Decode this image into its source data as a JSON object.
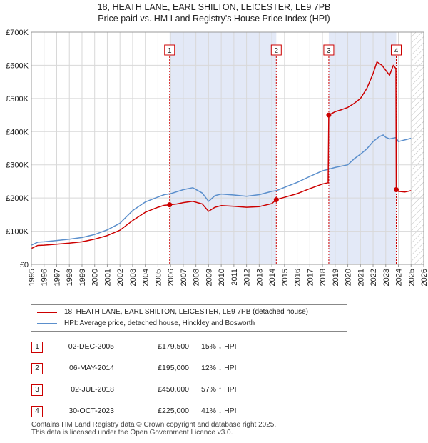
{
  "title_line1": "18, HEATH LANE, EARL SHILTON, LEICESTER, LE9 7PB",
  "title_line2": "Price paid vs. HM Land Registry's House Price Index (HPI)",
  "colors": {
    "property": "#cc0000",
    "hpi": "#5b8fcc",
    "shade": "#e3e9f7",
    "grid": "#d8d8d8",
    "future_hatch": "#bbbbbb"
  },
  "legend": {
    "property_label": "18, HEATH LANE, EARL SHILTON, LEICESTER, LE9 7PB (detached house)",
    "hpi_label": "HPI: Average price, detached house, Hinckley and Bosworth"
  },
  "sales": [
    {
      "num": "1",
      "date": "02-DEC-2005",
      "price": "£179,500",
      "hpi_change": "15% ↓ HPI"
    },
    {
      "num": "2",
      "date": "06-MAY-2014",
      "price": "£195,000",
      "hpi_change": "12% ↓ HPI"
    },
    {
      "num": "3",
      "date": "02-JUL-2018",
      "price": "£450,000",
      "hpi_change": "57% ↑ HPI"
    },
    {
      "num": "4",
      "date": "30-OCT-2023",
      "price": "£225,000",
      "hpi_change": "41% ↓ HPI"
    }
  ],
  "footer_line1": "Contains HM Land Registry data © Crown copyright and database right 2025.",
  "footer_line2": "This data is licensed under the Open Government Licence v3.0.",
  "chart_data": {
    "type": "line",
    "xlim": [
      1995,
      2026
    ],
    "ylim": [
      0,
      700000
    ],
    "x_ticks": [
      "1995",
      "1996",
      "1997",
      "1998",
      "1999",
      "2000",
      "2001",
      "2002",
      "2003",
      "2004",
      "2005",
      "2006",
      "2007",
      "2008",
      "2009",
      "2010",
      "2011",
      "2012",
      "2013",
      "2014",
      "2015",
      "2016",
      "2017",
      "2018",
      "2019",
      "2020",
      "2021",
      "2022",
      "2023",
      "2024",
      "2025",
      "2026"
    ],
    "y_ticks": [
      {
        "value": 0,
        "label": "£0"
      },
      {
        "value": 100000,
        "label": "£100K"
      },
      {
        "value": 200000,
        "label": "£200K"
      },
      {
        "value": 300000,
        "label": "£300K"
      },
      {
        "value": 400000,
        "label": "£400K"
      },
      {
        "value": 500000,
        "label": "£500K"
      },
      {
        "value": 600000,
        "label": "£600K"
      },
      {
        "value": 700000,
        "label": "£700K"
      }
    ],
    "grid": true,
    "future_from": 2025.0,
    "sale_markers": [
      {
        "label": "1",
        "x": 2005.92,
        "y": 179500
      },
      {
        "label": "2",
        "x": 2014.35,
        "y": 195000
      },
      {
        "label": "3",
        "x": 2018.5,
        "y": 450000
      },
      {
        "label": "4",
        "x": 2023.83,
        "y": 225000
      }
    ],
    "shaded_periods": [
      [
        2005.92,
        2014.35
      ],
      [
        2018.5,
        2023.83
      ]
    ],
    "series": [
      {
        "name": "18, HEATH LANE, EARL SHILTON, LEICESTER, LE9 7PB (detached house)",
        "x": [
          1995.0,
          1995.5,
          1996.0,
          1997.0,
          1998.0,
          1999.0,
          2000.0,
          2001.0,
          2002.0,
          2003.0,
          2004.0,
          2005.0,
          2005.5,
          2005.92,
          2006.5,
          2007.0,
          2007.75,
          2008.5,
          2009.0,
          2009.5,
          2010.0,
          2011.0,
          2012.0,
          2013.0,
          2014.0,
          2014.35,
          2015.0,
          2016.0,
          2017.0,
          2018.0,
          2018.45,
          2018.5,
          2019.0,
          2019.5,
          2020.0,
          2020.5,
          2021.0,
          2021.5,
          2022.0,
          2022.3,
          2022.7,
          2023.0,
          2023.3,
          2023.6,
          2023.8,
          2023.83,
          2024.0,
          2024.5,
          2025.0
        ],
        "y": [
          48000,
          57000,
          58000,
          61000,
          64000,
          68000,
          76000,
          87000,
          103000,
          132000,
          157000,
          172000,
          178000,
          179500,
          182000,
          186000,
          190000,
          182000,
          160000,
          172000,
          177000,
          175000,
          172000,
          174000,
          183000,
          195000,
          202000,
          213000,
          228000,
          242000,
          246000,
          450000,
          460000,
          466000,
          473000,
          485000,
          500000,
          530000,
          575000,
          610000,
          600000,
          585000,
          570000,
          600000,
          590000,
          225000,
          220000,
          218000,
          222000
        ]
      },
      {
        "name": "HPI: Average price, detached house, Hinckley and Bosworth",
        "x": [
          1995.0,
          1995.5,
          1996.0,
          1997.0,
          1998.0,
          1999.0,
          2000.0,
          2001.0,
          2002.0,
          2003.0,
          2004.0,
          2005.0,
          2005.5,
          2006.0,
          2007.0,
          2007.75,
          2008.5,
          2009.0,
          2009.5,
          2010.0,
          2011.0,
          2012.0,
          2013.0,
          2014.0,
          2014.35,
          2015.0,
          2016.0,
          2017.0,
          2018.0,
          2018.5,
          2019.0,
          2020.0,
          2020.5,
          2021.0,
          2021.5,
          2022.0,
          2022.5,
          2022.8,
          2023.0,
          2023.3,
          2023.8,
          2024.0,
          2024.5,
          2025.0
        ],
        "y": [
          58000,
          67000,
          68000,
          72000,
          76000,
          81000,
          90000,
          104000,
          124000,
          162000,
          188000,
          203000,
          210000,
          213000,
          225000,
          231000,
          215000,
          190000,
          207000,
          212000,
          209000,
          205000,
          210000,
          220000,
          222000,
          232000,
          247000,
          265000,
          282000,
          287000,
          292000,
          300000,
          318000,
          332000,
          348000,
          370000,
          385000,
          390000,
          383000,
          378000,
          382000,
          370000,
          375000,
          380000
        ]
      }
    ]
  }
}
